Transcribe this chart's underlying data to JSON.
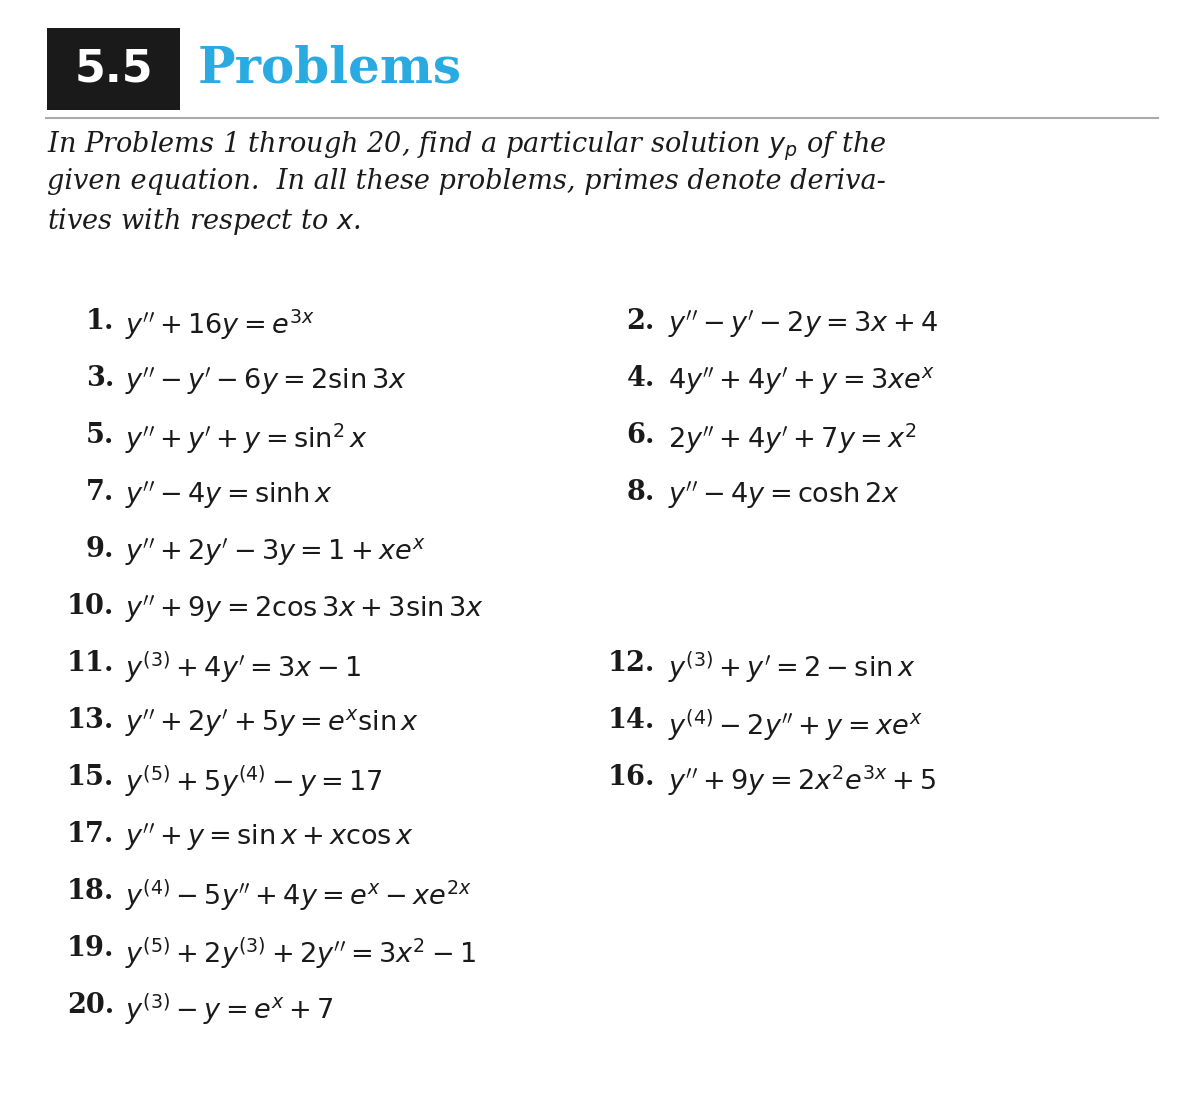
{
  "title_number": "5.5",
  "title_text": "Problems",
  "title_number_bg": "#1a1a1a",
  "title_number_color": "#ffffff",
  "title_text_color": "#29abe2",
  "bg_color": "#ffffff",
  "text_color": "#1a1a1a",
  "header_line_color": "#aaaaaa",
  "intro_fontsize": 19.5,
  "problem_fontsize": 19.5,
  "header_fontsize": 36,
  "header_num_fontsize": 32,
  "layout": [
    {
      "row": 0,
      "col": 0,
      "num": "1.",
      "eq": "$y'' + 16y = e^{3x}$"
    },
    {
      "row": 0,
      "col": 1,
      "num": "2.",
      "eq": "$y'' - y' - 2y = 3x + 4$"
    },
    {
      "row": 1,
      "col": 0,
      "num": "3.",
      "eq": "$y'' - y' - 6y = 2\\sin 3x$"
    },
    {
      "row": 1,
      "col": 1,
      "num": "4.",
      "eq": "$4y'' + 4y' + y = 3xe^x$"
    },
    {
      "row": 2,
      "col": 0,
      "num": "5.",
      "eq": "$y'' + y' + y = \\sin^2 x$"
    },
    {
      "row": 2,
      "col": 1,
      "num": "6.",
      "eq": "$2y'' + 4y' + 7y = x^2$"
    },
    {
      "row": 3,
      "col": 0,
      "num": "7.",
      "eq": "$y'' - 4y = \\sinh x$"
    },
    {
      "row": 3,
      "col": 1,
      "num": "8.",
      "eq": "$y'' - 4y = \\cosh 2x$"
    },
    {
      "row": 4,
      "col": 0,
      "num": "9.",
      "eq": "$y'' + 2y' - 3y = 1 + xe^x$"
    },
    {
      "row": 5,
      "col": 0,
      "num": "10.",
      "eq": "$y'' + 9y = 2\\cos 3x + 3\\sin 3x$"
    },
    {
      "row": 6,
      "col": 0,
      "num": "11.",
      "eq": "$y^{(3)} + 4y' = 3x - 1$"
    },
    {
      "row": 6,
      "col": 1,
      "num": "12.",
      "eq": "$y^{(3)} + y' = 2 - \\sin x$"
    },
    {
      "row": 7,
      "col": 0,
      "num": "13.",
      "eq": "$y'' + 2y' + 5y = e^x \\sin x$"
    },
    {
      "row": 7,
      "col": 1,
      "num": "14.",
      "eq": "$y^{(4)} - 2y'' + y = xe^x$"
    },
    {
      "row": 8,
      "col": 0,
      "num": "15.",
      "eq": "$y^{(5)} + 5y^{(4)} - y = 17$"
    },
    {
      "row": 8,
      "col": 1,
      "num": "16.",
      "eq": "$y'' + 9y = 2x^2 e^{3x} + 5$"
    },
    {
      "row": 9,
      "col": 0,
      "num": "17.",
      "eq": "$y'' + y = \\sin x + x\\cos x$"
    },
    {
      "row": 10,
      "col": 0,
      "num": "18.",
      "eq": "$y^{(4)} - 5y'' + 4y = e^x - xe^{2x}$"
    },
    {
      "row": 11,
      "col": 0,
      "num": "19.",
      "eq": "$y^{(5)} + 2y^{(3)} + 2y'' = 3x^2 - 1$"
    },
    {
      "row": 12,
      "col": 0,
      "num": "20.",
      "eq": "$y^{(3)} - y = e^x + 7$"
    }
  ]
}
